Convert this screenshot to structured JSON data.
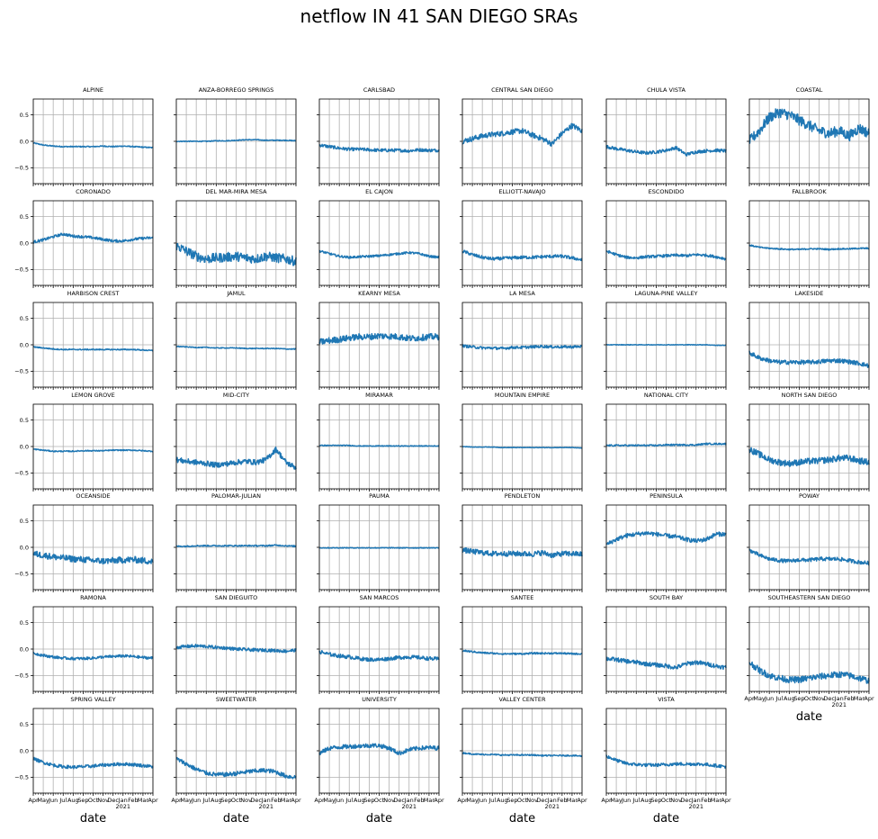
{
  "figure": {
    "title": "netflow IN 41 SAN DIEGO SRAs"
  },
  "chart_data": {
    "type": "line",
    "title": "netflow IN 41 SAN DIEGO SRAs",
    "layout": "7x6 small multiples, shared axes",
    "xlabel": "date",
    "ylabel": "",
    "ylim": [
      -0.8,
      0.8
    ],
    "yticks": [
      0.5,
      0.0,
      -0.5
    ],
    "ytick_labels": [
      "0.5",
      "0.0",
      "−0.5"
    ],
    "x_month_labels": [
      "Apr",
      "May",
      "Jun",
      "Jul",
      "Aug",
      "Sep",
      "Oct",
      "Nov",
      "Dec",
      "Jan",
      "Feb",
      "Mar",
      "Apr"
    ],
    "x_year_label": "2021",
    "x_range": [
      "2020-04",
      "2021-04"
    ],
    "grid": true,
    "line_color": "#1f77b4",
    "panels": [
      {
        "name": "ALPINE",
        "values": [
          -0.03,
          -0.07,
          -0.09,
          -0.1,
          -0.1,
          -0.1,
          -0.1,
          -0.09,
          -0.1,
          -0.09,
          -0.1,
          -0.11,
          -0.12
        ],
        "noise": 0.01
      },
      {
        "name": "ANZA-BORREGO SPRINGS",
        "values": [
          0.0,
          0.0,
          0.0,
          0.0,
          0.01,
          0.01,
          0.02,
          0.03,
          0.03,
          0.02,
          0.02,
          0.02,
          0.01
        ],
        "noise": 0.008
      },
      {
        "name": "CARLSBAD",
        "values": [
          -0.07,
          -0.1,
          -0.13,
          -0.15,
          -0.15,
          -0.16,
          -0.17,
          -0.17,
          -0.17,
          -0.18,
          -0.16,
          -0.17,
          -0.17
        ],
        "noise": 0.03
      },
      {
        "name": "CENTRAL SAN DIEGO",
        "values": [
          0.0,
          0.05,
          0.1,
          0.13,
          0.15,
          0.18,
          0.2,
          0.12,
          0.05,
          -0.05,
          0.15,
          0.3,
          0.2
        ],
        "noise": 0.05
      },
      {
        "name": "CHULA VISTA",
        "values": [
          -0.1,
          -0.14,
          -0.17,
          -0.2,
          -0.22,
          -0.2,
          -0.17,
          -0.12,
          -0.25,
          -0.2,
          -0.18,
          -0.17,
          -0.18
        ],
        "noise": 0.03
      },
      {
        "name": "COASTAL",
        "values": [
          0.0,
          0.2,
          0.45,
          0.55,
          0.5,
          0.4,
          0.3,
          0.2,
          0.15,
          0.2,
          0.1,
          0.25,
          0.15
        ],
        "noise": 0.1
      },
      {
        "name": "CORONADO",
        "values": [
          0.02,
          0.06,
          0.12,
          0.17,
          0.13,
          0.12,
          0.1,
          0.07,
          0.04,
          0.04,
          0.07,
          0.09,
          0.1
        ],
        "noise": 0.025
      },
      {
        "name": "DEL MAR-MIRA MESA",
        "values": [
          -0.05,
          -0.15,
          -0.25,
          -0.3,
          -0.28,
          -0.27,
          -0.25,
          -0.28,
          -0.3,
          -0.25,
          -0.28,
          -0.3,
          -0.35
        ],
        "noise": 0.09
      },
      {
        "name": "EL CAJON",
        "values": [
          -0.15,
          -0.2,
          -0.25,
          -0.27,
          -0.26,
          -0.25,
          -0.24,
          -0.22,
          -0.2,
          -0.18,
          -0.2,
          -0.25,
          -0.27
        ],
        "noise": 0.02
      },
      {
        "name": "ELLIOTT-NAVAJO",
        "values": [
          -0.15,
          -0.22,
          -0.27,
          -0.3,
          -0.29,
          -0.28,
          -0.27,
          -0.27,
          -0.26,
          -0.25,
          -0.25,
          -0.28,
          -0.32
        ],
        "noise": 0.03
      },
      {
        "name": "ESCONDIDO",
        "values": [
          -0.15,
          -0.22,
          -0.27,
          -0.28,
          -0.26,
          -0.25,
          -0.24,
          -0.23,
          -0.24,
          -0.22,
          -0.23,
          -0.26,
          -0.3
        ],
        "noise": 0.025
      },
      {
        "name": "FALLBROOK",
        "values": [
          -0.04,
          -0.08,
          -0.1,
          -0.11,
          -0.12,
          -0.12,
          -0.11,
          -0.11,
          -0.12,
          -0.11,
          -0.11,
          -0.1,
          -0.1
        ],
        "noise": 0.012
      },
      {
        "name": "HARBISON CREST",
        "values": [
          -0.04,
          -0.06,
          -0.08,
          -0.09,
          -0.09,
          -0.09,
          -0.09,
          -0.09,
          -0.09,
          -0.09,
          -0.09,
          -0.1,
          -0.11
        ],
        "noise": 0.01
      },
      {
        "name": "JAMUL",
        "values": [
          -0.03,
          -0.04,
          -0.05,
          -0.05,
          -0.06,
          -0.06,
          -0.06,
          -0.07,
          -0.07,
          -0.07,
          -0.07,
          -0.08,
          -0.08
        ],
        "noise": 0.008
      },
      {
        "name": "KEARNY MESA",
        "values": [
          0.05,
          0.08,
          0.1,
          0.13,
          0.15,
          0.15,
          0.17,
          0.16,
          0.15,
          0.12,
          0.13,
          0.15,
          0.15
        ],
        "noise": 0.06
      },
      {
        "name": "LA MESA",
        "values": [
          -0.02,
          -0.04,
          -0.06,
          -0.06,
          -0.07,
          -0.05,
          -0.05,
          -0.04,
          -0.03,
          -0.04,
          -0.04,
          -0.04,
          -0.03
        ],
        "noise": 0.025
      },
      {
        "name": "LAGUNA-PINE VALLEY",
        "values": [
          0.0,
          0.0,
          0.0,
          0.0,
          0.0,
          0.0,
          0.0,
          0.0,
          0.0,
          0.0,
          0.0,
          -0.01,
          -0.01
        ],
        "noise": 0.005
      },
      {
        "name": "LAKESIDE",
        "values": [
          -0.15,
          -0.25,
          -0.3,
          -0.33,
          -0.33,
          -0.33,
          -0.33,
          -0.32,
          -0.3,
          -0.3,
          -0.32,
          -0.35,
          -0.4
        ],
        "noise": 0.04
      },
      {
        "name": "LEMON GROVE",
        "values": [
          -0.05,
          -0.07,
          -0.09,
          -0.09,
          -0.09,
          -0.08,
          -0.08,
          -0.08,
          -0.07,
          -0.07,
          -0.07,
          -0.08,
          -0.09
        ],
        "noise": 0.01
      },
      {
        "name": "MID-CITY",
        "values": [
          -0.25,
          -0.28,
          -0.3,
          -0.32,
          -0.35,
          -0.33,
          -0.3,
          -0.28,
          -0.3,
          -0.25,
          -0.05,
          -0.3,
          -0.4
        ],
        "noise": 0.05
      },
      {
        "name": "MIRAMAR",
        "values": [
          0.02,
          0.02,
          0.02,
          0.02,
          0.01,
          0.01,
          0.01,
          0.01,
          0.01,
          0.01,
          0.01,
          0.01,
          0.01
        ],
        "noise": 0.008
      },
      {
        "name": "MOUNTAIN EMPIRE",
        "values": [
          0.0,
          -0.01,
          -0.01,
          -0.01,
          -0.02,
          -0.02,
          -0.02,
          -0.02,
          -0.02,
          -0.02,
          -0.02,
          -0.02,
          -0.03
        ],
        "noise": 0.005
      },
      {
        "name": "NATIONAL CITY",
        "values": [
          0.02,
          0.02,
          0.02,
          0.02,
          0.02,
          0.02,
          0.03,
          0.03,
          0.03,
          0.03,
          0.05,
          0.05,
          0.05
        ],
        "noise": 0.015
      },
      {
        "name": "NORTH SAN DIEGO",
        "values": [
          -0.05,
          -0.15,
          -0.25,
          -0.3,
          -0.32,
          -0.3,
          -0.28,
          -0.27,
          -0.25,
          -0.22,
          -0.22,
          -0.27,
          -0.3
        ],
        "noise": 0.06
      },
      {
        "name": "OCEANSIDE",
        "values": [
          -0.12,
          -0.15,
          -0.18,
          -0.2,
          -0.22,
          -0.23,
          -0.25,
          -0.26,
          -0.25,
          -0.24,
          -0.23,
          -0.25,
          -0.27
        ],
        "noise": 0.06
      },
      {
        "name": "PALOMAR-JULIAN",
        "values": [
          0.02,
          0.02,
          0.03,
          0.03,
          0.03,
          0.03,
          0.03,
          0.03,
          0.03,
          0.03,
          0.04,
          0.03,
          0.02
        ],
        "noise": 0.012
      },
      {
        "name": "PAUMA",
        "values": [
          -0.01,
          -0.01,
          -0.01,
          -0.01,
          -0.01,
          -0.01,
          -0.01,
          -0.01,
          -0.01,
          -0.01,
          -0.01,
          -0.01,
          -0.01
        ],
        "noise": 0.008
      },
      {
        "name": "PENDLETON",
        "values": [
          -0.05,
          -0.08,
          -0.1,
          -0.12,
          -0.12,
          -0.12,
          -0.12,
          -0.13,
          -0.1,
          -0.15,
          -0.12,
          -0.12,
          -0.13
        ],
        "noise": 0.05
      },
      {
        "name": "PENINSULA",
        "values": [
          0.05,
          0.15,
          0.22,
          0.25,
          0.27,
          0.25,
          0.22,
          0.2,
          0.15,
          0.12,
          0.15,
          0.25,
          0.25
        ],
        "noise": 0.04
      },
      {
        "name": "POWAY",
        "values": [
          -0.05,
          -0.15,
          -0.22,
          -0.25,
          -0.26,
          -0.24,
          -0.24,
          -0.22,
          -0.22,
          -0.22,
          -0.25,
          -0.28,
          -0.3
        ],
        "noise": 0.035
      },
      {
        "name": "RAMONA",
        "values": [
          -0.08,
          -0.12,
          -0.15,
          -0.17,
          -0.18,
          -0.18,
          -0.17,
          -0.15,
          -0.14,
          -0.13,
          -0.14,
          -0.16,
          -0.17
        ],
        "noise": 0.025
      },
      {
        "name": "SAN DIEGUITO",
        "values": [
          0.03,
          0.05,
          0.06,
          0.05,
          0.03,
          0.02,
          0.0,
          -0.01,
          -0.02,
          -0.02,
          -0.03,
          -0.04,
          -0.02
        ],
        "noise": 0.03
      },
      {
        "name": "SAN MARCOS",
        "values": [
          -0.05,
          -0.1,
          -0.13,
          -0.15,
          -0.18,
          -0.2,
          -0.2,
          -0.18,
          -0.16,
          -0.15,
          -0.16,
          -0.18,
          -0.19
        ],
        "noise": 0.035
      },
      {
        "name": "SANTEE",
        "values": [
          -0.03,
          -0.05,
          -0.07,
          -0.08,
          -0.09,
          -0.09,
          -0.09,
          -0.08,
          -0.08,
          -0.08,
          -0.08,
          -0.09,
          -0.09
        ],
        "noise": 0.015
      },
      {
        "name": "SOUTH BAY",
        "values": [
          -0.18,
          -0.2,
          -0.23,
          -0.25,
          -0.28,
          -0.3,
          -0.32,
          -0.35,
          -0.28,
          -0.25,
          -0.28,
          -0.32,
          -0.35
        ],
        "noise": 0.04
      },
      {
        "name": "SOUTHEASTERN SAN DIEGO",
        "values": [
          -0.25,
          -0.4,
          -0.5,
          -0.55,
          -0.58,
          -0.58,
          -0.55,
          -0.52,
          -0.5,
          -0.48,
          -0.5,
          -0.55,
          -0.6
        ],
        "noise": 0.06
      },
      {
        "name": "SPRING VALLEY",
        "values": [
          -0.15,
          -0.22,
          -0.27,
          -0.3,
          -0.31,
          -0.3,
          -0.29,
          -0.27,
          -0.26,
          -0.25,
          -0.26,
          -0.28,
          -0.3
        ],
        "noise": 0.03
      },
      {
        "name": "SWEETWATER",
        "values": [
          -0.15,
          -0.25,
          -0.35,
          -0.42,
          -0.45,
          -0.45,
          -0.43,
          -0.4,
          -0.38,
          -0.37,
          -0.4,
          -0.48,
          -0.5
        ],
        "noise": 0.04
      },
      {
        "name": "UNIVERSITY",
        "values": [
          -0.05,
          0.05,
          0.07,
          0.08,
          0.09,
          0.1,
          0.1,
          0.05,
          -0.05,
          0.02,
          0.05,
          0.06,
          0.05
        ],
        "noise": 0.04
      },
      {
        "name": "VALLEY CENTER",
        "values": [
          -0.04,
          -0.06,
          -0.07,
          -0.07,
          -0.08,
          -0.08,
          -0.08,
          -0.08,
          -0.09,
          -0.09,
          -0.09,
          -0.09,
          -0.1
        ],
        "noise": 0.012
      },
      {
        "name": "VISTA",
        "values": [
          -0.1,
          -0.18,
          -0.24,
          -0.26,
          -0.27,
          -0.27,
          -0.26,
          -0.25,
          -0.25,
          -0.25,
          -0.26,
          -0.28,
          -0.3
        ],
        "noise": 0.03
      }
    ]
  }
}
